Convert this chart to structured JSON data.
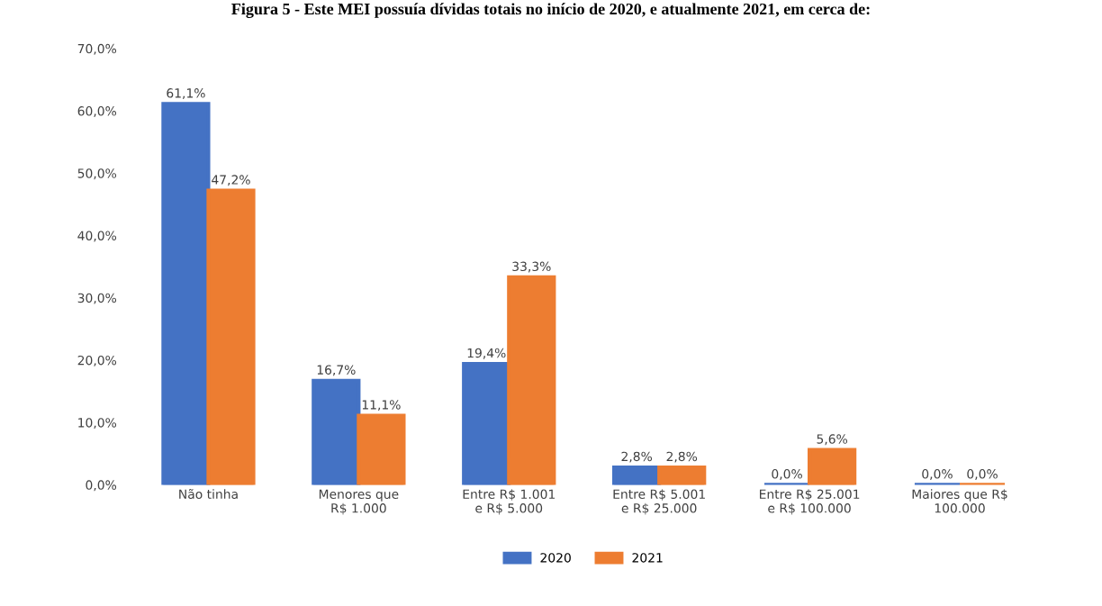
{
  "chart_data": {
    "type": "bar",
    "title": "Figura 5 - Este MEI possuía dívidas totais no início de 2020, e atualmente 2021, em cerca de:",
    "categories": [
      "Não tinha",
      "Menores que\nR$ 1.000",
      "Entre R$ 1.001\ne R$ 5.000",
      "Entre R$ 5.001\ne R$ 25.000",
      "Entre R$ 25.001\ne R$ 100.000",
      "Maiores que R$\n100.000"
    ],
    "series": [
      {
        "name": "2020",
        "color": "#4472c4",
        "values": [
          61.1,
          16.7,
          19.4,
          2.8,
          0.0,
          0.0
        ],
        "value_labels": [
          "61,1%",
          "16,7%",
          "19,4%",
          "2,8%",
          "0,0%",
          "0,0%"
        ]
      },
      {
        "name": "2021",
        "color": "#ed7d31",
        "values": [
          47.2,
          11.1,
          33.3,
          2.8,
          5.6,
          0.0
        ],
        "value_labels": [
          "47,2%",
          "11,1%",
          "33,3%",
          "2,8%",
          "5,6%",
          "0,0%"
        ]
      }
    ],
    "ylim": [
      0,
      70
    ],
    "yticks": [
      {
        "value": 0,
        "label": "0,0%"
      },
      {
        "value": 10,
        "label": "10,0%"
      },
      {
        "value": 20,
        "label": "20,0%"
      },
      {
        "value": 30,
        "label": "30,0%"
      },
      {
        "value": 40,
        "label": "40,0%"
      },
      {
        "value": 50,
        "label": "50,0%"
      },
      {
        "value": 60,
        "label": "60,0%"
      },
      {
        "value": 70,
        "label": "70,0%"
      }
    ],
    "legend": "bottom",
    "grid": false
  }
}
